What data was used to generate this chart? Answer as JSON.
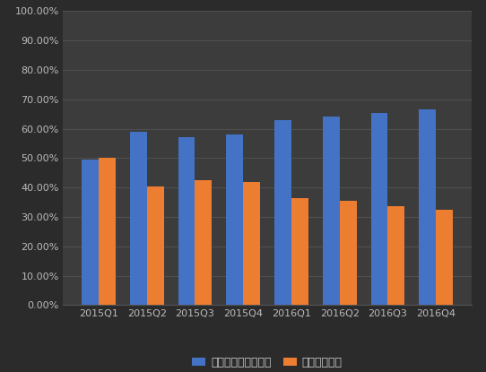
{
  "categories": [
    "2015Q1",
    "2015Q2",
    "2015Q3",
    "2015Q4",
    "2016Q1",
    "2016Q2",
    "2016Q3",
    "2016Q4"
  ],
  "series1_values": [
    0.495,
    0.59,
    0.57,
    0.58,
    0.63,
    0.64,
    0.655,
    0.665
  ],
  "series2_values": [
    0.5,
    0.405,
    0.425,
    0.42,
    0.365,
    0.355,
    0.335,
    0.325
  ],
  "series1_label": "前五名出货累计占比",
  "series2_label": "其他累计占比",
  "series1_color": "#4472C4",
  "series2_color": "#ED7D31",
  "background_color": "#2B2B2B",
  "plot_bg_color": "#3C3C3C",
  "grid_color": "#555555",
  "text_color": "#CCCCCC",
  "tick_color": "#BBBBBB",
  "ylim": [
    0.0,
    1.0
  ],
  "yticks": [
    0.0,
    0.1,
    0.2,
    0.3,
    0.4,
    0.5,
    0.6,
    0.7,
    0.8,
    0.9,
    1.0
  ],
  "ytick_labels": [
    "0.00%",
    "10.00%",
    "20.00%",
    "30.00%",
    "40.00%",
    "50.00%",
    "60.00%",
    "70.00%",
    "80.00%",
    "90.00%",
    "100.00%"
  ],
  "bar_width": 0.35,
  "legend_fontsize": 9,
  "tick_fontsize": 8
}
